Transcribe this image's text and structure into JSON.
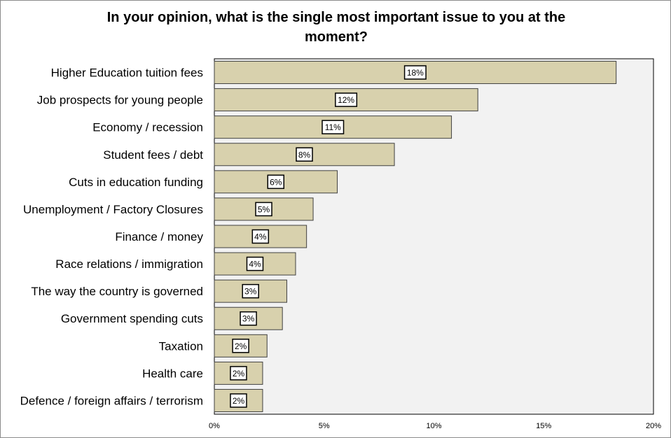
{
  "chart_data": {
    "type": "bar",
    "orientation": "horizontal",
    "title": "In your opinion, what is the single most important issue to you at the moment?",
    "categories": [
      "Higher Education tuition fees",
      "Job prospects for young people",
      "Economy / recession",
      "Student fees / debt",
      "Cuts in education funding",
      "Unemployment / Factory Closures",
      "Finance / money",
      "Race relations / immigration",
      "The way the country is governed",
      "Government spending cuts",
      "Taxation",
      "Health care",
      "Defence / foreign affairs / terrorism"
    ],
    "values": [
      18.3,
      12.0,
      10.8,
      8.2,
      5.6,
      4.5,
      4.2,
      3.7,
      3.3,
      3.1,
      2.4,
      2.2,
      2.2
    ],
    "data_labels": [
      "18%",
      "12%",
      "11%",
      "8%",
      "6%",
      "5%",
      "4%",
      "4%",
      "3%",
      "3%",
      "2%",
      "2%",
      "2%"
    ],
    "x_ticks": [
      "0%",
      "5%",
      "10%",
      "15%",
      "20%"
    ],
    "x_tick_values": [
      0,
      5,
      10,
      15,
      20
    ],
    "xlim": [
      0,
      20
    ],
    "xlabel": "",
    "ylabel": "",
    "grid": false,
    "legend": "none",
    "colors": {
      "bar_fill": "#d8d1ad",
      "bar_stroke": "#404040",
      "plot_background": "#f2f2f2",
      "label_box_fill": "#ffffff"
    }
  }
}
